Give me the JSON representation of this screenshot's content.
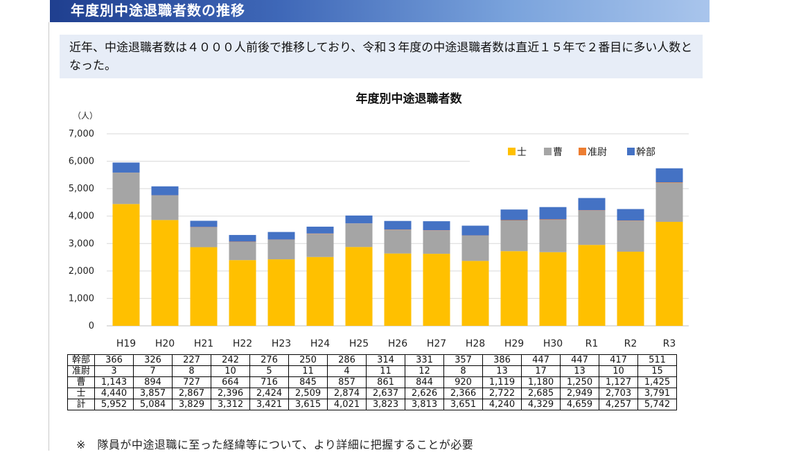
{
  "header": {
    "title": "年度別中途退職者数の推移"
  },
  "summary": {
    "text": "近年、中途退職者数は４０００人前後で推移しており、令和３年度の中途退職者数は直近１５年で２番目に多い人数となった。"
  },
  "chart_data": {
    "type": "bar",
    "stacked": true,
    "title": "年度別中途退職者数",
    "ylabel": "（人）",
    "ylim": [
      0,
      7000
    ],
    "yticks": [
      "0",
      "1,000",
      "2,000",
      "3,000",
      "4,000",
      "5,000",
      "6,000",
      "7,000"
    ],
    "grid": true,
    "legend_position": "top-right",
    "categories": [
      "H19",
      "H20",
      "H21",
      "H22",
      "H23",
      "H24",
      "H25",
      "H26",
      "H27",
      "H28",
      "H29",
      "H30",
      "R1",
      "R2",
      "R3"
    ],
    "series": [
      {
        "name": "士",
        "color": "#ffc000",
        "values": [
          4440,
          3857,
          2867,
          2396,
          2424,
          2509,
          2874,
          2637,
          2626,
          2366,
          2722,
          2685,
          2949,
          2703,
          3791
        ]
      },
      {
        "name": "曹",
        "color": "#a5a5a5",
        "values": [
          1143,
          894,
          727,
          664,
          716,
          845,
          857,
          861,
          844,
          920,
          1119,
          1180,
          1250,
          1127,
          1425
        ]
      },
      {
        "name": "准尉",
        "color": "#ed7d31",
        "values": [
          3,
          7,
          8,
          10,
          5,
          11,
          4,
          11,
          12,
          8,
          13,
          17,
          13,
          10,
          15
        ]
      },
      {
        "name": "幹部",
        "color": "#4472c4",
        "values": [
          366,
          326,
          227,
          242,
          276,
          250,
          286,
          314,
          331,
          357,
          386,
          447,
          447,
          417,
          511
        ]
      }
    ]
  },
  "table": {
    "rows": [
      {
        "label": "幹部",
        "cells": [
          "366",
          "326",
          "227",
          "242",
          "276",
          "250",
          "286",
          "314",
          "331",
          "357",
          "386",
          "447",
          "447",
          "417",
          "511"
        ]
      },
      {
        "label": "准尉",
        "cells": [
          "3",
          "7",
          "8",
          "10",
          "5",
          "11",
          "4",
          "11",
          "12",
          "8",
          "13",
          "17",
          "13",
          "10",
          "15"
        ]
      },
      {
        "label": "曹",
        "cells": [
          "1,143",
          "894",
          "727",
          "664",
          "716",
          "845",
          "857",
          "861",
          "844",
          "920",
          "1,119",
          "1,180",
          "1,250",
          "1,127",
          "1,425"
        ]
      },
      {
        "label": "士",
        "cells": [
          "4,440",
          "3,857",
          "2,867",
          "2,396",
          "2,424",
          "2,509",
          "2,874",
          "2,637",
          "2,626",
          "2,366",
          "2,722",
          "2,685",
          "2,949",
          "2,703",
          "3,791"
        ]
      },
      {
        "label": "計",
        "cells": [
          "5,952",
          "5,084",
          "3,829",
          "3,312",
          "3,421",
          "3,615",
          "4,021",
          "3,823",
          "3,813",
          "3,651",
          "4,240",
          "4,329",
          "4,659",
          "4,257",
          "5,742"
        ]
      }
    ]
  },
  "footnote": {
    "text": "※　隊員が中途退職に至った経緯等について、より詳細に把握することが必要"
  }
}
